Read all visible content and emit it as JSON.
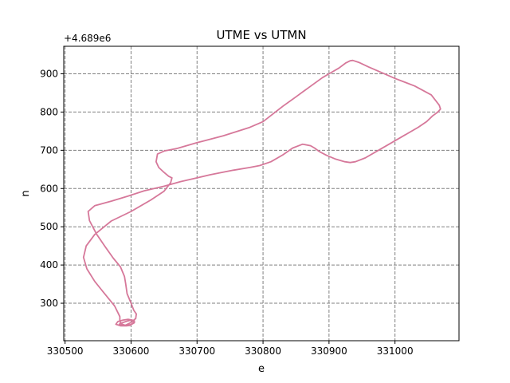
{
  "chart_data": {
    "type": "line",
    "title": "UTME vs UTMN",
    "xlabel": "e",
    "ylabel": "n",
    "y_offset_label": "+4.689e6",
    "xlim": [
      330498,
      331097
    ],
    "ylim": [
      202,
      972
    ],
    "x_ticks": [
      330500,
      330600,
      330700,
      330800,
      330900,
      331000
    ],
    "x_tick_labels": [
      "330500",
      "330600",
      "330700",
      "330800",
      "330900",
      "331000"
    ],
    "y_ticks": [
      300,
      400,
      500,
      600,
      700,
      800,
      900
    ],
    "y_tick_labels": [
      "300",
      "400",
      "500",
      "600",
      "700",
      "800",
      "900"
    ],
    "grid": true,
    "line_color": "#d6789a",
    "grid_color": "#808080",
    "series": [
      {
        "name": "",
        "x": [
          330585,
          330592,
          330600,
          330605,
          330605,
          330600,
          330598,
          330593,
          330584,
          330577,
          330580,
          330588,
          330596,
          330602,
          330604,
          330603,
          330599,
          330590,
          330585,
          330583,
          330583,
          330575,
          330560,
          330545,
          330533,
          330528,
          330532,
          330545,
          330570,
          330600,
          330630,
          330650,
          330660,
          330662,
          330657,
          330650,
          330642,
          330638,
          330640,
          330650,
          330670,
          330700,
          330740,
          330780,
          330800,
          330815,
          330830,
          330850,
          330870,
          330890,
          330900,
          330915,
          330925,
          330932,
          330936,
          330945,
          330960,
          330980,
          331000,
          331030,
          331055,
          331067,
          331069,
          331065,
          331057,
          331048,
          331035,
          331015,
          330995,
          330975,
          330955,
          330940,
          330932,
          330924,
          330910,
          330896,
          330885,
          330878,
          330872,
          330860,
          330845,
          330830,
          330812,
          330795,
          330780,
          330755,
          330720,
          330700,
          330675,
          330650,
          330620,
          330595,
          330570,
          330545,
          330535,
          330537,
          330548,
          330560,
          330573,
          330584,
          330590,
          330592,
          330594,
          330600,
          330604,
          330608,
          330607,
          330600,
          330592,
          330586,
          330582,
          330584
        ],
        "y": [
          248,
          252,
          256,
          254,
          249,
          244,
          242,
          241,
          241,
          245,
          252,
          256,
          258,
          256,
          252,
          248,
          244,
          243,
          246,
          255,
          265,
          293,
          325,
          357,
          390,
          420,
          450,
          480,
          515,
          540,
          570,
          593,
          615,
          628,
          632,
          642,
          655,
          670,
          690,
          698,
          705,
          720,
          738,
          760,
          775,
          795,
          815,
          840,
          865,
          890,
          900,
          915,
          928,
          934,
          935,
          930,
          918,
          903,
          888,
          868,
          845,
          818,
          808,
          800,
          790,
          775,
          760,
          740,
          720,
          700,
          680,
          670,
          668,
          670,
          677,
          687,
          697,
          706,
          712,
          716,
          706,
          688,
          670,
          660,
          655,
          648,
          636,
          628,
          618,
          606,
          594,
          580,
          567,
          555,
          540,
          516,
          480,
          450,
          418,
          395,
          370,
          350,
          325,
          300,
          282,
          272,
          260,
          250,
          243,
          242,
          244,
          249
        ]
      }
    ]
  }
}
